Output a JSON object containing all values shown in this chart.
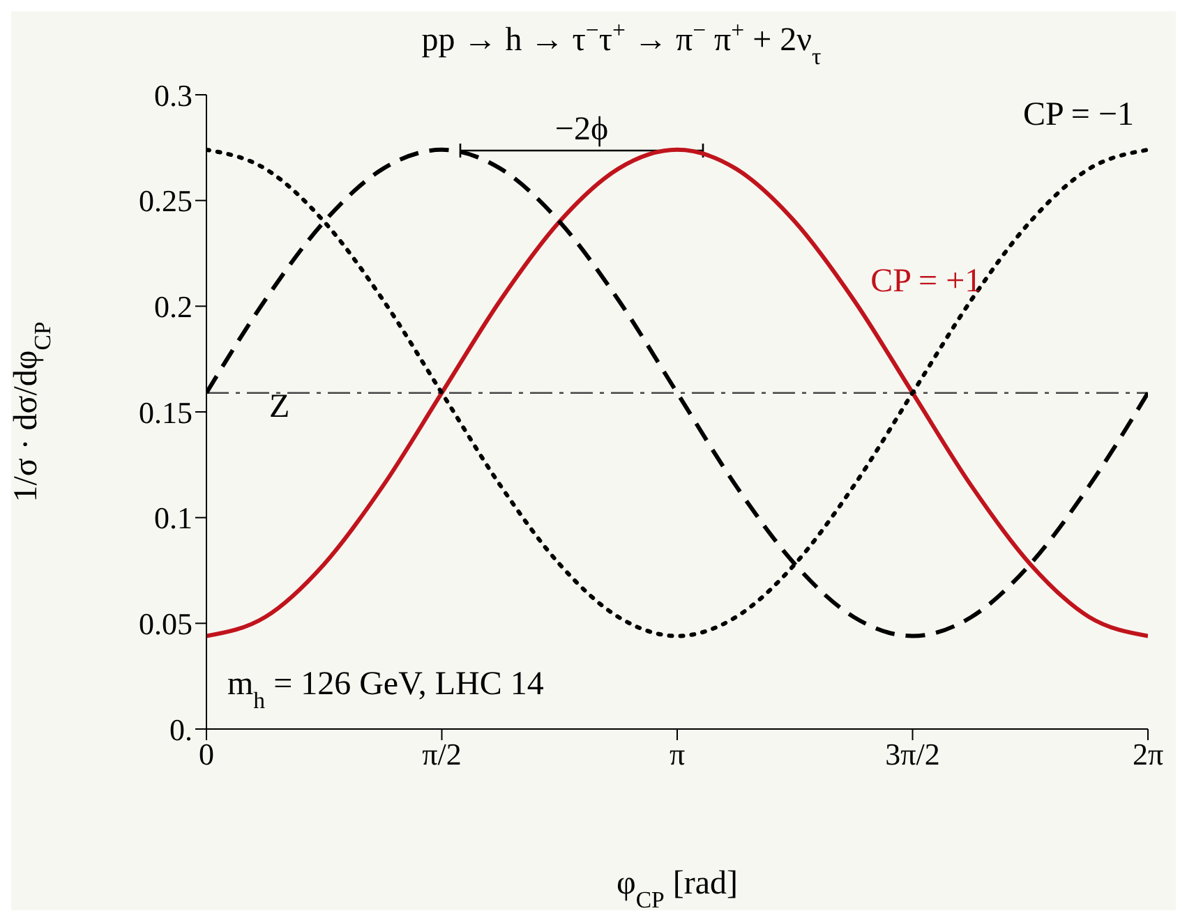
{
  "chart_data": {
    "type": "line",
    "title": "pp → h → τ$^{−}$τ$^{+}$ → π$^{−}$ π$^{+}$ + 2ν$_{τ}$",
    "xlabel": "φ$_{CP}$ [rad]",
    "ylabel": "1/σ · dσ/dφ$_{CP}$",
    "x": [
      0,
      0.3927,
      0.7854,
      1.1781,
      1.5708,
      1.9635,
      2.3562,
      2.7489,
      3.1416,
      3.5343,
      3.927,
      4.3197,
      4.7124,
      5.1051,
      5.4978,
      5.8905,
      6.2832
    ],
    "series": [
      {
        "name": "CP = +1",
        "color": "#c0141c",
        "line_style": "solid",
        "values": [
          0.044,
          0.053,
          0.078,
          0.115,
          0.159,
          0.203,
          0.24,
          0.265,
          0.274,
          0.265,
          0.24,
          0.203,
          0.159,
          0.115,
          0.078,
          0.053,
          0.044
        ]
      },
      {
        "name": "CP = −1",
        "color": "#000000",
        "line_style": "dotted",
        "values": [
          0.274,
          0.265,
          0.24,
          0.203,
          0.159,
          0.115,
          0.078,
          0.053,
          0.044,
          0.053,
          0.078,
          0.115,
          0.159,
          0.203,
          0.24,
          0.265,
          0.274
        ]
      },
      {
        "color": "#000000",
        "line_style": "dashed",
        "values": [
          0.159,
          0.203,
          0.24,
          0.265,
          0.274,
          0.265,
          0.24,
          0.203,
          0.159,
          0.115,
          0.078,
          0.053,
          0.044,
          0.053,
          0.078,
          0.115,
          0.159
        ]
      }
    ],
    "xlim": [
      0,
      6.2832
    ],
    "xticks": [
      {
        "value": 0,
        "label": "0"
      },
      {
        "value": 1.5708,
        "label": "π/2"
      },
      {
        "value": 3.1416,
        "label": "π"
      },
      {
        "value": 4.7124,
        "label": "3π/2"
      },
      {
        "value": 6.2832,
        "label": "2π"
      }
    ],
    "ylim": [
      0,
      0.3
    ],
    "yticks": [
      {
        "value": 0,
        "label": "0."
      },
      0.05,
      0.1,
      0.15,
      0.2,
      0.25,
      0.3
    ],
    "ref_lines": [
      {
        "axis": "y",
        "value": 0.159,
        "label": "Z",
        "color": "#444444",
        "line_style": "dashed"
      }
    ],
    "annotations": [
      "−2ϕ",
      "m$_{h}$ = 126 GeV, LHC 14"
    ],
    "marker": "none"
  }
}
